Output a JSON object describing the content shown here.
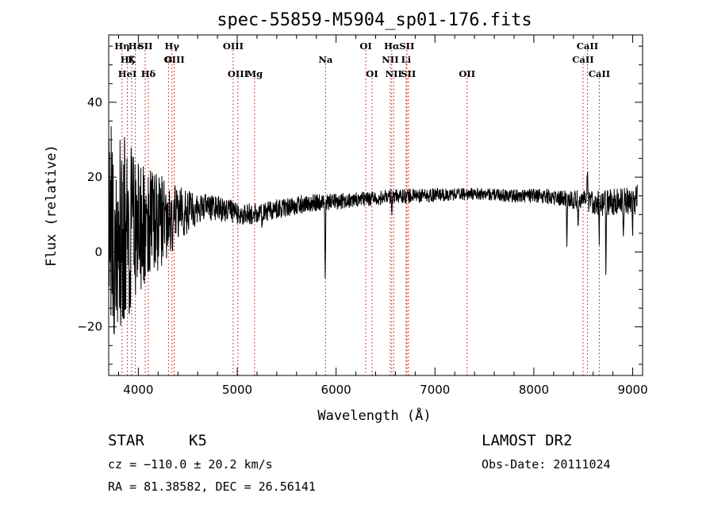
{
  "chart_data": {
    "type": "line",
    "title": "spec-55859-M5904_sp01-176.fits",
    "xlabel": "Wavelength (Å)",
    "ylabel": "Flux (relative)",
    "xlim": [
      3700,
      9100
    ],
    "ylim": [
      -33,
      58
    ],
    "x_ticks": [
      4000,
      5000,
      6000,
      7000,
      8000,
      9000
    ],
    "y_ticks": [
      -20,
      0,
      20,
      40
    ],
    "grid": false,
    "line_color": "#000000",
    "marker_color": "#cc0000",
    "spectrum": {
      "name": "",
      "anchors_x": [
        3700,
        3800,
        3900,
        4000,
        4100,
        4200,
        4300,
        4400,
        4500,
        4700,
        4900,
        5100,
        5300,
        5500,
        5700,
        6000,
        6300,
        6600,
        6900,
        7200,
        7500,
        7800,
        8100,
        8400,
        8700,
        9050
      ],
      "anchors_y": [
        5,
        6,
        6,
        7,
        7,
        8,
        9,
        10,
        11,
        12,
        11,
        10,
        11,
        12,
        13,
        13.5,
        14,
        15,
        15,
        15.5,
        15.5,
        15,
        15,
        14,
        13,
        14
      ],
      "noise_x": [
        3700,
        3900,
        4000,
        4200,
        4400,
        4600,
        5000,
        6000,
        7500,
        8300,
        8700,
        9050
      ],
      "noise_amp": [
        30,
        24,
        18,
        13,
        8,
        4,
        3,
        2.2,
        1.6,
        2.2,
        3.5,
        4
      ],
      "features": [
        {
          "x": 5250,
          "depth": 3
        },
        {
          "x": 5890,
          "depth": 22
        },
        {
          "x": 6563,
          "depth": 4
        },
        {
          "x": 8335,
          "depth": 13
        },
        {
          "x": 8447,
          "depth": 8
        },
        {
          "x": 8542,
          "depth": -8
        },
        {
          "x": 8662,
          "depth": 10
        },
        {
          "x": 8730,
          "depth": 20
        },
        {
          "x": 8905,
          "depth": 8
        },
        {
          "x": 9000,
          "depth": 6
        }
      ]
    },
    "line_markers": [
      {
        "label": "Hη",
        "wave": 3835,
        "row": 0
      },
      {
        "label": "Hε",
        "wave": 3970,
        "row": 0
      },
      {
        "label": "SII",
        "wave": 4069,
        "row": 0
      },
      {
        "label": "Hγ",
        "wave": 4340,
        "row": 0
      },
      {
        "label": "OIII",
        "wave": 4959,
        "row": 0
      },
      {
        "label": "OI",
        "wave": 6300,
        "row": 0
      },
      {
        "label": "Hα",
        "wave": 6563,
        "row": 0
      },
      {
        "label": "SII",
        "wave": 6716,
        "row": 0
      },
      {
        "label": "CaII",
        "wave": 8542,
        "row": 0
      },
      {
        "label": "Hζ",
        "wave": 3889,
        "row": 1
      },
      {
        "label": "K",
        "wave": 3933,
        "row": 1
      },
      {
        "label": "G",
        "wave": 4305,
        "row": 1
      },
      {
        "label": "OIII",
        "wave": 4363,
        "row": 1
      },
      {
        "label": "Na",
        "wave": 5893,
        "row": 1
      },
      {
        "label": "NII",
        "wave": 6548,
        "row": 1
      },
      {
        "label": "Li",
        "wave": 6708,
        "row": 1
      },
      {
        "label": "CaII",
        "wave": 8498,
        "row": 1
      },
      {
        "label": "HeI",
        "wave": 3889,
        "row": 2
      },
      {
        "label": "Hδ",
        "wave": 4101,
        "row": 2
      },
      {
        "label": "OIII",
        "wave": 5007,
        "row": 2
      },
      {
        "label": "Mg",
        "wave": 5175,
        "row": 2
      },
      {
        "label": "OI",
        "wave": 6364,
        "row": 2
      },
      {
        "label": "NII",
        "wave": 6583,
        "row": 2
      },
      {
        "label": "SII",
        "wave": 6731,
        "row": 2
      },
      {
        "label": "OII",
        "wave": 7325,
        "row": 2
      },
      {
        "label": "CaII",
        "wave": 8662,
        "row": 2
      }
    ]
  },
  "info": {
    "class": "STAR",
    "subclass": "K5",
    "survey": "LAMOST DR2",
    "velocity": "cz = −110.0 ± 20.2 km/s",
    "obs_date": "Obs-Date: 20111024",
    "coords": "RA =  81.38582, DEC =  26.56141"
  }
}
